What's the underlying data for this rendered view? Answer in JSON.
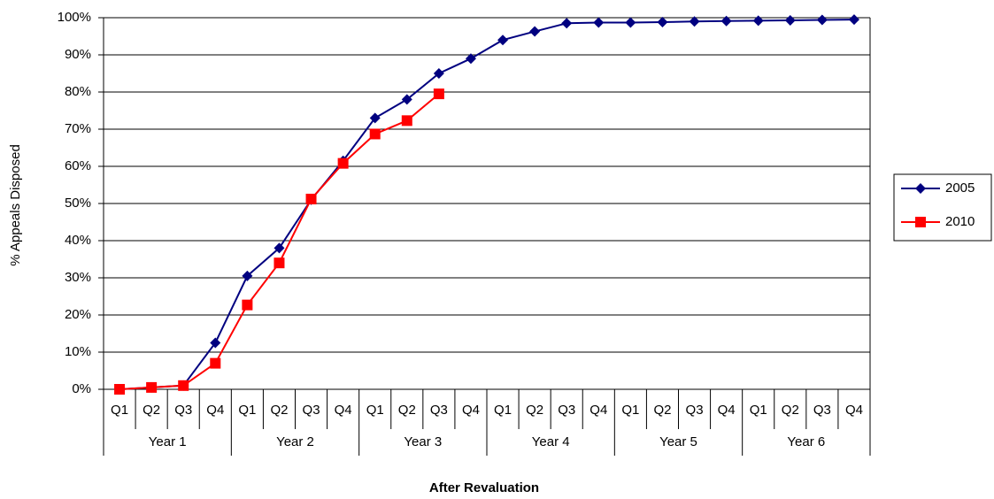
{
  "chart_data": {
    "type": "line",
    "y_label": "% Appeals Disposed",
    "x_label": "After Revaluation",
    "categories": [
      "Q1",
      "Q2",
      "Q3",
      "Q4",
      "Q1",
      "Q2",
      "Q3",
      "Q4",
      "Q1",
      "Q2",
      "Q3",
      "Q4",
      "Q1",
      "Q2",
      "Q3",
      "Q4",
      "Q1",
      "Q2",
      "Q3",
      "Q4",
      "Q1",
      "Q2",
      "Q3",
      "Q4"
    ],
    "groups": [
      "Year 1",
      "Year 2",
      "Year 3",
      "Year 4",
      "Year 5",
      "Year 6"
    ],
    "series": [
      {
        "name": "2005",
        "color": "#000080",
        "marker": "diamond",
        "values": [
          0,
          0.5,
          1,
          12.5,
          30.5,
          38,
          51,
          61.5,
          73,
          78,
          85,
          89,
          94,
          96.3,
          98.5,
          98.7,
          98.7,
          98.8,
          99,
          99.1,
          99.2,
          99.3,
          99.4,
          99.5
        ]
      },
      {
        "name": "2010",
        "color": "#ff0000",
        "marker": "square",
        "values": [
          0,
          0.5,
          1,
          7,
          22.7,
          34,
          51.2,
          60.8,
          68.7,
          72.3,
          79.5,
          null,
          null,
          null,
          null,
          null,
          null,
          null,
          null,
          null,
          null,
          null,
          null,
          null
        ]
      }
    ],
    "ylim": [
      0,
      100
    ],
    "yticks": [
      {
        "value": 0,
        "label": "0%"
      },
      {
        "value": 10,
        "label": "10%"
      },
      {
        "value": 20,
        "label": "20%"
      },
      {
        "value": 30,
        "label": "30%"
      },
      {
        "value": 40,
        "label": "40%"
      },
      {
        "value": 50,
        "label": "50%"
      },
      {
        "value": 60,
        "label": "60%"
      },
      {
        "value": 70,
        "label": "70%"
      },
      {
        "value": 80,
        "label": "80%"
      },
      {
        "value": 90,
        "label": "90%"
      },
      {
        "value": 100,
        "label": "100%"
      }
    ],
    "grid": true,
    "legend": "right"
  }
}
